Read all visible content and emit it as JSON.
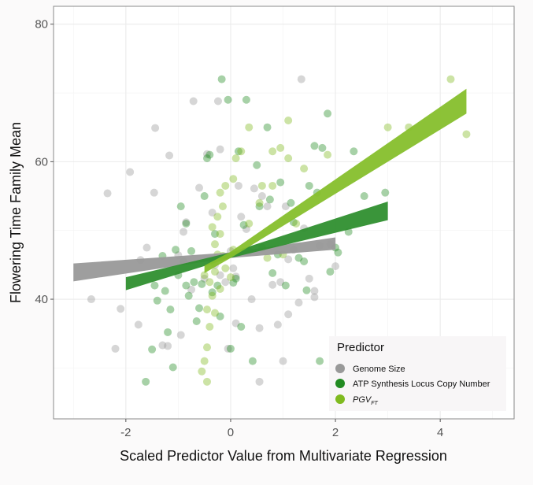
{
  "chart_data": {
    "type": "scatter",
    "title": "",
    "xlabel": "Scaled Predictor Value from Multivariate Regression",
    "ylabel": "Flowering Time Family Mean",
    "xlim": [
      -3.38,
      5.41
    ],
    "ylim": [
      22.6,
      82.6
    ],
    "x_ticks": [
      -2,
      0,
      2,
      4
    ],
    "x_tick_labels": [
      "-2",
      "0",
      "2",
      "4"
    ],
    "y_ticks": [
      40,
      60,
      80
    ],
    "y_tick_labels": [
      "40",
      "60",
      "80"
    ],
    "grid": true,
    "legend": {
      "title": "Predictor",
      "placement": "bottom-right"
    },
    "series": [
      {
        "name": "Genome Size",
        "color": "#999999",
        "band_color": "#999999",
        "fit": {
          "slope": 0.84,
          "intercept": 46.4
        },
        "ci": [
          [
            -3,
            42.6,
            45.2
          ],
          [
            0,
            46.0,
            46.8
          ],
          [
            2,
            47.2,
            49.0
          ]
        ],
        "points": [
          [
            -2.66,
            40
          ],
          [
            -2.35,
            55.4
          ],
          [
            -2.2,
            32.8
          ],
          [
            -2.1,
            38.6
          ],
          [
            -1.92,
            58.5
          ],
          [
            -1.76,
            36.3
          ],
          [
            -1.72,
            45.7
          ],
          [
            -1.6,
            47.5
          ],
          [
            -1.46,
            55.5
          ],
          [
            -1.44,
            64.9
          ],
          [
            -1.3,
            33.3
          ],
          [
            -1.2,
            33.2
          ],
          [
            -1.17,
            60.9
          ],
          [
            -1.0,
            46.4
          ],
          [
            -0.95,
            34.8
          ],
          [
            -0.9,
            49.8
          ],
          [
            -0.85,
            51.2
          ],
          [
            -0.75,
            41.4
          ],
          [
            -0.71,
            68.8
          ],
          [
            -0.6,
            56.2
          ],
          [
            -0.45,
            61.1
          ],
          [
            -0.35,
            52.6
          ],
          [
            -0.24,
            68.8
          ],
          [
            -0.2,
            61.8
          ],
          [
            -0.1,
            42.5
          ],
          [
            -0.05,
            32.8
          ],
          [
            0.05,
            44.5
          ],
          [
            0.1,
            36.5
          ],
          [
            0.15,
            56.5
          ],
          [
            0.2,
            52
          ],
          [
            0.3,
            50.2
          ],
          [
            0.4,
            40
          ],
          [
            0.45,
            56.1
          ],
          [
            0.55,
            35.8
          ],
          [
            0.55,
            28
          ],
          [
            0.7,
            53.5
          ],
          [
            0.8,
            42.1
          ],
          [
            0.9,
            36.3
          ],
          [
            0.95,
            42.5
          ],
          [
            1.0,
            31
          ],
          [
            1.05,
            53.5
          ],
          [
            1.1,
            37.8
          ],
          [
            1.2,
            47.2
          ],
          [
            1.3,
            39.5
          ],
          [
            1.35,
            72
          ],
          [
            1.4,
            50.3
          ],
          [
            1.5,
            43
          ],
          [
            1.6,
            41.2
          ],
          [
            1.7,
            47.8
          ],
          [
            1.9,
            48
          ],
          [
            2.0,
            44.8
          ],
          [
            1.6,
            40.3
          ],
          [
            -0.3,
            45
          ],
          [
            0.0,
            47
          ],
          [
            -0.2,
            43.5
          ],
          [
            0.1,
            43.3
          ],
          [
            -0.5,
            43
          ],
          [
            1.1,
            45.8
          ],
          [
            0.6,
            55
          ]
        ]
      },
      {
        "name": "ATP Synthesis Locus Copy Number",
        "color": "#228b22",
        "band_color": "#2f8f2f",
        "fit": {
          "slope": 2.12,
          "intercept": 46.4
        },
        "ci": [
          [
            -2,
            41.3,
            43.2
          ],
          [
            0,
            46.0,
            46.8
          ],
          [
            3,
            51.5,
            54.2
          ]
        ],
        "points": [
          [
            -1.62,
            28
          ],
          [
            -1.5,
            32.7
          ],
          [
            -1.45,
            42
          ],
          [
            -1.4,
            39.8
          ],
          [
            -1.3,
            46.3
          ],
          [
            -1.25,
            41.2
          ],
          [
            -1.2,
            35.2
          ],
          [
            -1.15,
            38.5
          ],
          [
            -1.1,
            30.1
          ],
          [
            -1.05,
            47.2
          ],
          [
            -1.0,
            43.5
          ],
          [
            -0.95,
            53.5
          ],
          [
            -0.9,
            45.5
          ],
          [
            -0.85,
            42
          ],
          [
            -0.85,
            51
          ],
          [
            -0.8,
            40.5
          ],
          [
            -0.75,
            47
          ],
          [
            -0.7,
            42.5
          ],
          [
            -0.65,
            36.8
          ],
          [
            -0.6,
            38.7
          ],
          [
            -0.55,
            42.2
          ],
          [
            -0.5,
            55
          ],
          [
            -0.45,
            60.5
          ],
          [
            -0.4,
            61
          ],
          [
            -0.3,
            49.5
          ],
          [
            -0.2,
            37.5
          ],
          [
            -0.17,
            72
          ],
          [
            -0.05,
            69
          ],
          [
            0.0,
            32.8
          ],
          [
            0.1,
            43
          ],
          [
            0.15,
            61.5
          ],
          [
            0.2,
            36
          ],
          [
            0.25,
            50.8
          ],
          [
            0.3,
            69
          ],
          [
            0.35,
            47
          ],
          [
            0.42,
            31
          ],
          [
            0.5,
            59.5
          ],
          [
            0.55,
            53.5
          ],
          [
            0.6,
            47.5
          ],
          [
            0.7,
            65
          ],
          [
            0.75,
            54.5
          ],
          [
            0.8,
            43.8
          ],
          [
            0.9,
            46.5
          ],
          [
            0.95,
            57
          ],
          [
            1.05,
            42
          ],
          [
            1.15,
            54
          ],
          [
            1.2,
            51.2
          ],
          [
            1.3,
            46
          ],
          [
            1.4,
            45.5
          ],
          [
            1.45,
            41.3
          ],
          [
            1.5,
            56.5
          ],
          [
            1.6,
            62.3
          ],
          [
            1.65,
            55.5
          ],
          [
            1.7,
            31
          ],
          [
            1.75,
            62
          ],
          [
            1.9,
            44
          ],
          [
            2.0,
            47.5
          ],
          [
            2.05,
            46.8
          ],
          [
            2.25,
            49.8
          ],
          [
            2.35,
            61.5
          ],
          [
            2.55,
            55
          ],
          [
            2.95,
            55.5
          ],
          [
            1.85,
            67
          ],
          [
            -0.35,
            41
          ],
          [
            -0.25,
            42
          ],
          [
            0.05,
            42.4
          ]
        ]
      },
      {
        "name": "PGV",
        "name_subscript": "FT",
        "color": "#7fba1f",
        "band_color": "#86bf2c",
        "fit": {
          "slope": 4.9,
          "intercept": 46.5
        },
        "ci": [
          [
            -0.5,
            43.8,
            44.9
          ],
          [
            0,
            46.0,
            46.9
          ],
          [
            4.5,
            67.0,
            70.6
          ]
        ],
        "points": [
          [
            -0.55,
            29.5
          ],
          [
            -0.45,
            28
          ],
          [
            -0.5,
            31
          ],
          [
            -0.45,
            33
          ],
          [
            -0.4,
            36
          ],
          [
            -0.45,
            38.5
          ],
          [
            -0.35,
            40.5
          ],
          [
            -0.4,
            42.5
          ],
          [
            -0.3,
            44
          ],
          [
            -0.35,
            45.5
          ],
          [
            -0.25,
            46.5
          ],
          [
            -0.3,
            48
          ],
          [
            -0.2,
            49.5
          ],
          [
            -0.35,
            50.5
          ],
          [
            -0.25,
            52
          ],
          [
            -0.15,
            53.5
          ],
          [
            -0.2,
            55.5
          ],
          [
            -0.1,
            56.5
          ],
          [
            0.05,
            57.5
          ],
          [
            0.1,
            60.5
          ],
          [
            0.2,
            61.5
          ],
          [
            0.35,
            65
          ],
          [
            0.6,
            56.5
          ],
          [
            0.8,
            61.5
          ],
          [
            0.95,
            62
          ],
          [
            1.1,
            60.5
          ],
          [
            1.1,
            66
          ],
          [
            1.4,
            59
          ],
          [
            0.7,
            46
          ],
          [
            1.0,
            46.5
          ],
          [
            1.25,
            51
          ],
          [
            0.35,
            51
          ],
          [
            1.85,
            61
          ],
          [
            3.0,
            65
          ],
          [
            3.4,
            65
          ],
          [
            4.2,
            72
          ],
          [
            4.5,
            64
          ],
          [
            0.8,
            56.5
          ],
          [
            0.55,
            54
          ],
          [
            0.05,
            47.2
          ],
          [
            -0.1,
            44.5
          ],
          [
            -0.2,
            41.5
          ],
          [
            -0.5,
            43.5
          ],
          [
            -0.15,
            46.3
          ],
          [
            0.0,
            43.2
          ],
          [
            -0.3,
            38
          ]
        ]
      }
    ]
  }
}
